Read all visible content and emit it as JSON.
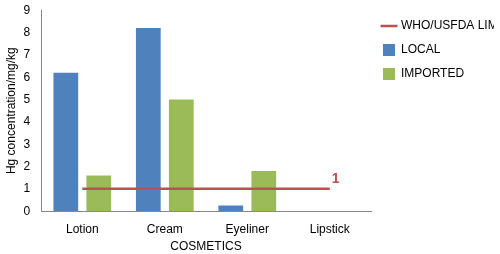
{
  "chart_data": {
    "type": "bar",
    "categories": [
      "Lotion",
      "Cream",
      "Eyeliner",
      "Lipstick"
    ],
    "series": [
      {
        "name": "LOCAL",
        "color": "#4f81bd",
        "values": [
          6.2,
          8.2,
          0.25,
          0
        ]
      },
      {
        "name": "IMPORTED",
        "color": "#9bbb59",
        "values": [
          1.6,
          5.0,
          1.8,
          0
        ]
      },
      {
        "name": "WHO/USFDA LIMIT",
        "color": "#c0504d",
        "type": "line",
        "values": [
          1,
          1,
          1,
          1
        ]
      }
    ],
    "x_label": "COSMETICS",
    "y_label": "Hg concentration/mg/kg",
    "ylim": [
      0,
      9
    ],
    "yticks": [
      0,
      1,
      2,
      3,
      4,
      5,
      6,
      7,
      8,
      9
    ],
    "grid": false,
    "legend": "right",
    "annotations": [
      {
        "text": "1",
        "x": "Lipstick",
        "y": 1,
        "color": "#c0504d"
      }
    ]
  }
}
